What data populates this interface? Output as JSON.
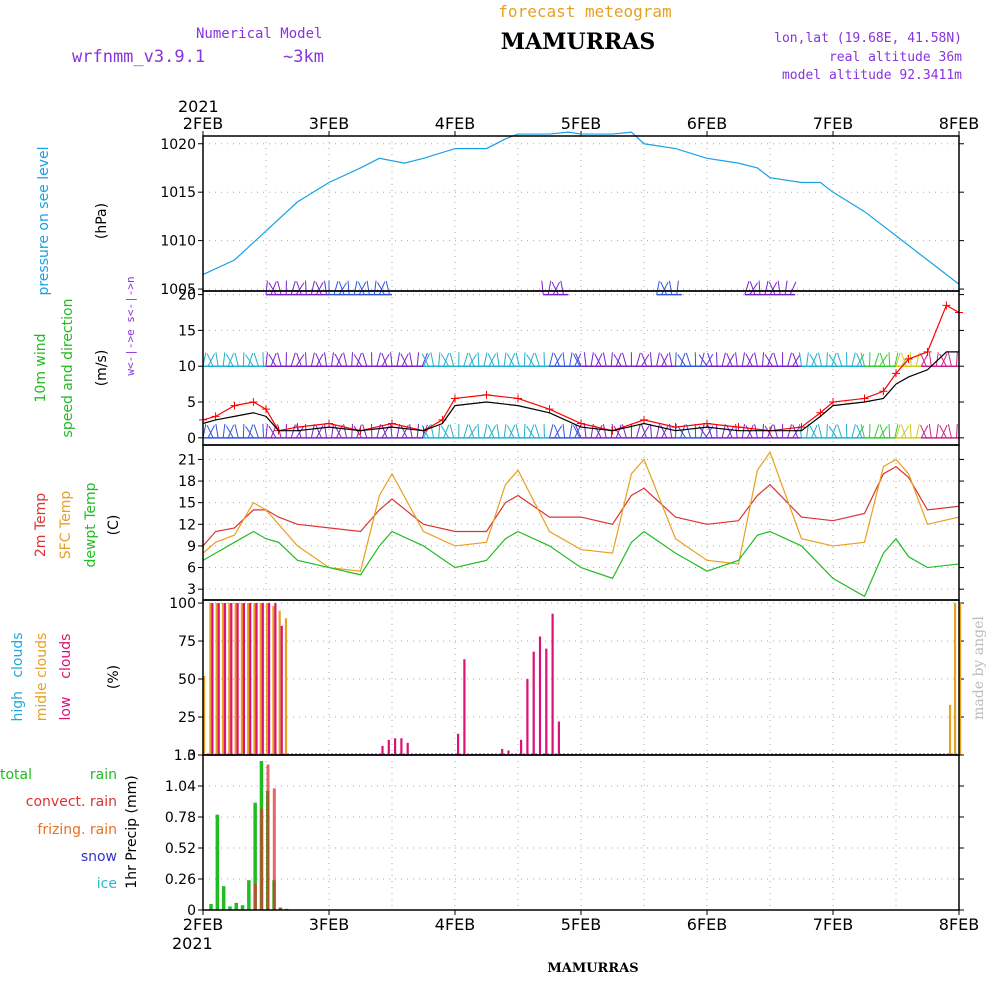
{
  "header": {
    "subtitle": "forecast meteogram",
    "station": "MAMURRAS",
    "model_label": "Numerical Model",
    "model_name": "wrfnmm_v3.9.1",
    "resolution": "~3km",
    "lonlat": "lon,lat (19.68E, 41.58N)",
    "real_altitude": "real altitude 36m",
    "model_altitude": "model altitude  92.3411m"
  },
  "footer": {
    "station": "MAMURRAS",
    "credit": "made by angel"
  },
  "time_axis": {
    "year": "2021",
    "ticks": [
      "2FEB",
      "3FEB",
      "4FEB",
      "5FEB",
      "6FEB",
      "7FEB",
      "8FEB"
    ]
  },
  "colors": {
    "pressure": "#1aa0e6",
    "wind_label": "#22bb22",
    "wind_speed_10m": "#ff0000",
    "wind_speed_model": "#000000",
    "temp_2m": "#dd3333",
    "temp_sfc": "#e8a020",
    "temp_dewpt": "#22bb22",
    "high_clouds": "#22a8d8",
    "middle_clouds": "#e8a020",
    "low_clouds": "#dd1177",
    "total_rain": "#22bb22",
    "convect_rain": "#dd3333",
    "frizing_rain": "#e87020",
    "snow": "#3333cc",
    "ice": "#22bbcc",
    "barb_purple": "#7722cc",
    "barb_blue": "#3355dd",
    "barb_cyan": "#22b0cc",
    "barb_green": "#33cc33",
    "barb_yellow": "#cccc22",
    "barb_magenta": "#cc2288"
  },
  "chart_data": [
    {
      "type": "line",
      "panel": "pressure",
      "label_main": "pressure on see level",
      "unit": "(hPa)",
      "x_range_days": [
        2,
        8
      ],
      "yticks": [
        1005,
        1010,
        1015,
        1020
      ],
      "ylim": [
        1004.8,
        1020.8
      ],
      "grid": true,
      "series": [
        {
          "x": [
            2.0,
            2.25,
            2.5,
            2.75,
            3.0,
            3.25,
            3.4,
            3.6,
            3.75,
            4.0,
            4.25,
            4.4,
            4.5,
            4.75,
            4.9,
            5.0,
            5.25,
            5.4,
            5.5,
            5.75,
            6.0,
            6.25,
            6.4,
            6.5,
            6.75,
            6.9,
            7.0,
            7.25,
            7.5,
            7.75,
            8.0
          ],
          "y": [
            1006.5,
            1008.0,
            1011.0,
            1014.0,
            1016.0,
            1017.5,
            1018.5,
            1018.0,
            1018.5,
            1019.5,
            1019.5,
            1020.5,
            1021.0,
            1021.0,
            1021.2,
            1021.0,
            1021.0,
            1021.2,
            1020.0,
            1019.5,
            1018.5,
            1018.0,
            1017.5,
            1016.5,
            1016.0,
            1016.0,
            1015.0,
            1013.0,
            1010.5,
            1008.0,
            1005.5
          ]
        }
      ]
    },
    {
      "type": "line",
      "panel": "wind",
      "label_main": "10m wind",
      "label_sub": "speed and direction",
      "unit": "(m/s)",
      "side_label": "w<-|->e  s<-|->n",
      "x_range_days": [
        2,
        8
      ],
      "yticks": [
        0,
        5,
        10,
        15,
        20
      ],
      "ylim": [
        -1,
        20.5
      ],
      "grid": true,
      "series": [
        {
          "role": "10m-wind-speed",
          "x": [
            2.0,
            2.1,
            2.25,
            2.4,
            2.5,
            2.6,
            2.75,
            3.0,
            3.25,
            3.5,
            3.75,
            3.9,
            4.0,
            4.25,
            4.5,
            4.75,
            5.0,
            5.25,
            5.5,
            5.75,
            6.0,
            6.25,
            6.5,
            6.75,
            6.9,
            7.0,
            7.25,
            7.4,
            7.5,
            7.6,
            7.75,
            7.9,
            8.0
          ],
          "y": [
            2.5,
            3.0,
            4.5,
            5.0,
            4.0,
            1.0,
            1.5,
            2.0,
            1.0,
            2.0,
            1.0,
            2.5,
            5.5,
            6.0,
            5.5,
            4.0,
            2.0,
            1.0,
            2.5,
            1.5,
            2.0,
            1.5,
            1.0,
            1.5,
            3.5,
            5.0,
            5.5,
            6.5,
            9.0,
            11.0,
            12.0,
            18.5,
            17.5
          ]
        },
        {
          "role": "model-wind-speed",
          "x": [
            2.0,
            2.1,
            2.25,
            2.4,
            2.5,
            2.6,
            2.75,
            3.0,
            3.25,
            3.5,
            3.75,
            3.9,
            4.0,
            4.25,
            4.5,
            4.75,
            5.0,
            5.25,
            5.5,
            5.75,
            6.0,
            6.25,
            6.5,
            6.75,
            6.9,
            7.0,
            7.25,
            7.4,
            7.5,
            7.6,
            7.75,
            7.9,
            8.0
          ],
          "y": [
            2.0,
            2.5,
            3.0,
            3.5,
            3.0,
            1.0,
            1.0,
            1.5,
            1.0,
            1.5,
            1.0,
            2.0,
            4.5,
            5.0,
            4.5,
            3.5,
            1.5,
            1.0,
            2.0,
            1.0,
            1.5,
            1.0,
            1.0,
            1.0,
            3.0,
            4.5,
            5.0,
            5.5,
            7.5,
            8.5,
            9.5,
            12.0,
            12.0
          ]
        }
      ],
      "barb_rows": [
        {
          "y": 0,
          "ranges": [
            [
              2.0,
              2.5,
              "barb_blue"
            ],
            [
              2.5,
              3.75,
              "barb_purple"
            ],
            [
              3.75,
              4.75,
              "barb_cyan"
            ],
            [
              4.75,
              5.0,
              "barb_blue"
            ],
            [
              5.0,
              5.75,
              "barb_purple"
            ],
            [
              5.75,
              6.0,
              "barb_blue"
            ],
            [
              6.0,
              6.75,
              "barb_purple"
            ],
            [
              6.75,
              7.25,
              "barb_cyan"
            ],
            [
              7.25,
              7.5,
              "barb_green"
            ],
            [
              7.5,
              7.7,
              "barb_yellow"
            ],
            [
              7.7,
              8.0,
              "barb_magenta"
            ]
          ]
        },
        {
          "y": 10,
          "ranges": [
            [
              2.0,
              2.5,
              "barb_cyan"
            ],
            [
              2.5,
              3.75,
              "barb_purple"
            ],
            [
              3.75,
              4.75,
              "barb_cyan"
            ],
            [
              4.75,
              5.0,
              "barb_blue"
            ],
            [
              5.0,
              5.75,
              "barb_purple"
            ],
            [
              5.75,
              6.0,
              "barb_blue"
            ],
            [
              6.0,
              6.75,
              "barb_purple"
            ],
            [
              6.75,
              7.25,
              "barb_cyan"
            ],
            [
              7.25,
              7.5,
              "barb_green"
            ],
            [
              7.5,
              7.7,
              "barb_yellow"
            ],
            [
              7.7,
              8.0,
              "barb_magenta"
            ]
          ]
        },
        {
          "y": 20,
          "ranges": [
            [
              2.5,
              3.0,
              "barb_purple"
            ],
            [
              3.0,
              3.5,
              "barb_blue"
            ],
            [
              4.7,
              4.9,
              "barb_purple"
            ],
            [
              5.6,
              5.8,
              "barb_blue"
            ],
            [
              6.3,
              6.7,
              "barb_purple"
            ]
          ]
        }
      ]
    },
    {
      "type": "line",
      "panel": "temperature",
      "label_a": "2m Temp",
      "label_b": "SFC Temp",
      "label_c": "dewpt Temp",
      "unit": "(C)",
      "x_range_days": [
        2,
        8
      ],
      "yticks": [
        3,
        6,
        9,
        12,
        15,
        18,
        21
      ],
      "ylim": [
        1.5,
        23.0
      ],
      "grid": true,
      "series": [
        {
          "role": "2m",
          "x": [
            2.0,
            2.1,
            2.25,
            2.4,
            2.5,
            2.6,
            2.75,
            3.0,
            3.25,
            3.4,
            3.5,
            3.75,
            4.0,
            4.25,
            4.4,
            4.5,
            4.75,
            5.0,
            5.25,
            5.4,
            5.5,
            5.75,
            6.0,
            6.25,
            6.4,
            6.5,
            6.75,
            7.0,
            7.25,
            7.4,
            7.5,
            7.6,
            7.75,
            8.0
          ],
          "y": [
            9.0,
            11.0,
            11.5,
            14.0,
            14.0,
            13.0,
            12.0,
            11.5,
            11.0,
            14.0,
            15.5,
            12.0,
            11.0,
            11.0,
            15.0,
            16.0,
            13.0,
            13.0,
            12.0,
            16.0,
            17.0,
            13.0,
            12.0,
            12.5,
            16.0,
            17.5,
            13.0,
            12.5,
            13.5,
            19.0,
            20.0,
            18.5,
            14.0,
            14.5
          ]
        },
        {
          "role": "sfc",
          "x": [
            2.0,
            2.1,
            2.25,
            2.4,
            2.5,
            2.6,
            2.75,
            3.0,
            3.25,
            3.4,
            3.5,
            3.75,
            4.0,
            4.25,
            4.4,
            4.5,
            4.75,
            5.0,
            5.25,
            5.4,
            5.5,
            5.75,
            6.0,
            6.25,
            6.4,
            6.5,
            6.75,
            7.0,
            7.25,
            7.4,
            7.5,
            7.6,
            7.75,
            8.0
          ],
          "y": [
            8.0,
            9.5,
            10.5,
            15.0,
            14.0,
            12.0,
            9.0,
            6.0,
            5.5,
            16.0,
            19.0,
            11.0,
            9.0,
            9.5,
            17.5,
            19.5,
            11.0,
            8.5,
            8.0,
            19.0,
            21.0,
            10.0,
            7.0,
            6.5,
            19.5,
            22.0,
            10.0,
            9.0,
            9.5,
            20.0,
            21.0,
            19.0,
            12.0,
            13.0
          ]
        },
        {
          "role": "dewpt",
          "x": [
            2.0,
            2.1,
            2.25,
            2.4,
            2.5,
            2.6,
            2.75,
            3.0,
            3.25,
            3.4,
            3.5,
            3.75,
            4.0,
            4.25,
            4.4,
            4.5,
            4.75,
            5.0,
            5.25,
            5.4,
            5.5,
            5.75,
            6.0,
            6.25,
            6.4,
            6.5,
            6.75,
            7.0,
            7.25,
            7.4,
            7.5,
            7.6,
            7.75,
            8.0
          ],
          "y": [
            7.0,
            8.0,
            9.5,
            11.0,
            10.0,
            9.5,
            7.0,
            6.0,
            5.0,
            9.0,
            11.0,
            9.0,
            6.0,
            7.0,
            10.0,
            11.0,
            9.0,
            6.0,
            4.5,
            9.5,
            11.0,
            8.0,
            5.5,
            7.0,
            10.5,
            11.0,
            9.0,
            4.5,
            2.0,
            8.0,
            10.0,
            7.5,
            6.0,
            6.5
          ]
        }
      ]
    },
    {
      "type": "bar",
      "panel": "clouds",
      "label_a": "high   clouds",
      "label_b": "midle clouds",
      "label_c": "low    clouds",
      "unit": "(%)",
      "x_range_days": [
        2,
        8
      ],
      "yticks": [
        0,
        25,
        50,
        75,
        100
      ],
      "ylim": [
        0,
        102
      ],
      "grid": true,
      "series": [
        {
          "role": "middle",
          "x": [
            2.0,
            2.05,
            2.1,
            2.15,
            2.2,
            2.25,
            2.3,
            2.35,
            2.4,
            2.45,
            2.5,
            2.55,
            2.6,
            2.65,
            7.92,
            7.96,
            8.0
          ],
          "values": [
            52,
            100,
            100,
            100,
            100,
            100,
            100,
            100,
            100,
            100,
            100,
            98,
            95,
            90,
            33,
            100,
            100
          ]
        },
        {
          "role": "low",
          "x": [
            2.05,
            2.1,
            2.15,
            2.2,
            2.25,
            2.3,
            2.35,
            2.4,
            2.45,
            2.5,
            2.55,
            2.6,
            3.4,
            3.45,
            3.5,
            3.55,
            3.6,
            4.0,
            4.05,
            4.35,
            4.4,
            4.5,
            4.55,
            4.6,
            4.65,
            4.7,
            4.75,
            4.8
          ],
          "values": [
            100,
            100,
            100,
            100,
            100,
            100,
            100,
            100,
            100,
            100,
            100,
            85,
            6,
            10,
            11,
            11,
            8,
            14,
            63,
            4,
            3,
            10,
            50,
            68,
            78,
            70,
            93,
            22
          ]
        }
      ]
    },
    {
      "type": "bar",
      "panel": "precip",
      "label_a": "total",
      "label_a2": "rain",
      "label_b": "convect. rain",
      "label_c": "frizing. rain",
      "label_d": "snow",
      "label_e": "ice",
      "unit": "1hr Precip (mm)",
      "x_range_days": [
        2,
        8
      ],
      "yticks": [
        0,
        0.26,
        0.52,
        0.78,
        1.04,
        1.3
      ],
      "ylim": [
        0,
        1.3
      ],
      "grid": true,
      "series": [
        {
          "role": "total",
          "x": [
            2.05,
            2.1,
            2.15,
            2.2,
            2.25,
            2.3,
            2.35,
            2.4,
            2.45,
            2.5,
            2.55,
            2.6,
            2.65
          ],
          "values": [
            0.05,
            0.8,
            0.2,
            0.03,
            0.06,
            0.04,
            0.25,
            0.9,
            1.25,
            1.0,
            0.25,
            0.02,
            0.01
          ]
        },
        {
          "role": "convect",
          "x": [
            2.4,
            2.45,
            2.5,
            2.55,
            2.6
          ],
          "values": [
            0.22,
            0.85,
            1.22,
            1.02,
            0.02
          ]
        }
      ]
    }
  ]
}
